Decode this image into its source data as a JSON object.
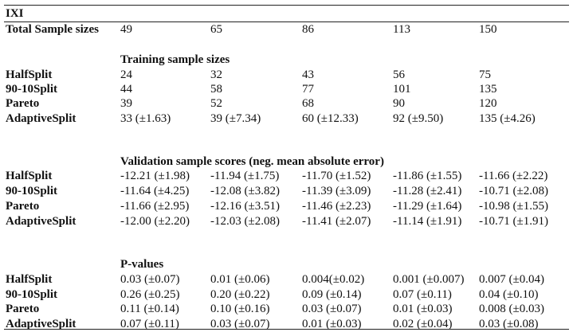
{
  "title": "IXI",
  "total_label": "Total Sample sizes",
  "total_values": [
    "49",
    "65",
    "86",
    "113",
    "150"
  ],
  "sections": [
    {
      "heading": "Training sample sizes",
      "rows": [
        {
          "label": "HalfSplit",
          "values": [
            "24",
            "32",
            "43",
            "56",
            "75"
          ]
        },
        {
          "label": "90-10Split",
          "values": [
            "44",
            "58",
            "77",
            "101",
            "135"
          ]
        },
        {
          "label": "Pareto",
          "values": [
            "39",
            "52",
            "68",
            "90",
            "120"
          ]
        },
        {
          "label": "AdaptiveSplit",
          "values": [
            "33 (±1.63)",
            "39 (±7.34)",
            "60 (±12.33)",
            "92 (±9.50)",
            "135 (±4.26)"
          ]
        }
      ]
    },
    {
      "heading": "Validation sample scores (neg. mean absolute error)",
      "rows": [
        {
          "label": "HalfSplit",
          "values": [
            "-12.21 (±1.98)",
            "-11.94 (±1.75)",
            "-11.70 (±1.52)",
            "-11.86 (±1.55)",
            "-11.66 (±2.22)"
          ]
        },
        {
          "label": "90-10Split",
          "values": [
            "-11.64 (±4.25)",
            "-12.08 (±3.82)",
            "-11.39 (±3.09)",
            "-11.28 (±2.41)",
            "-10.71 (±2.08)"
          ]
        },
        {
          "label": "Pareto",
          "values": [
            "-11.66 (±2.95)",
            "-12.16 (±3.51)",
            "-11.46 (±2.23)",
            "-11.29 (±1.64)",
            "-10.98 (±1.55)"
          ]
        },
        {
          "label": "AdaptiveSplit",
          "values": [
            "-12.00 (±2.20)",
            "-12.03 (±2.08)",
            "-11.41 (±2.07)",
            "-11.14 (±1.91)",
            "-10.71 (±1.91)"
          ]
        }
      ]
    },
    {
      "heading": "P-values",
      "rows": [
        {
          "label": "HalfSplit",
          "values": [
            "0.03 (±0.07)",
            "0.01 (±0.06)",
            "0.004(±0.02)",
            "0.001 (±0.007)",
            "0.007 (±0.04)"
          ]
        },
        {
          "label": "90-10Split",
          "values": [
            "0.26 (±0.25)",
            "0.20 (±0.22)",
            "0.09 (±0.14)",
            "0.07 (±0.11)",
            "0.04 (±0.10)"
          ]
        },
        {
          "label": "Pareto",
          "values": [
            "0.11 (±0.14)",
            "0.10 (±0.16)",
            "0.03 (±0.07)",
            "0.01 (±0.03)",
            "0.008 (±0.03)"
          ]
        },
        {
          "label": "AdaptiveSplit",
          "values": [
            "0.07 (±0.11)",
            "0.03 (±0.07)",
            "0.01 (±0.03)",
            "0.02 (±0.04)",
            "0.03 (±0.08)"
          ]
        }
      ]
    }
  ]
}
